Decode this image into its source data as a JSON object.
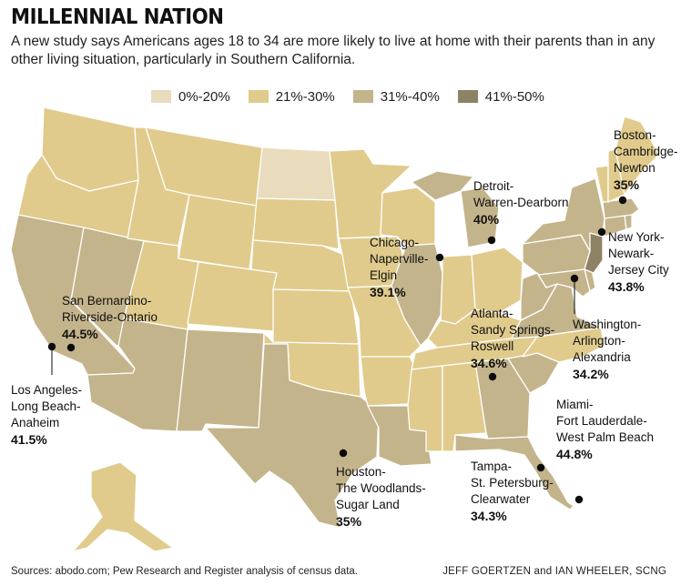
{
  "header": {
    "title": "MILLENNIAL NATION",
    "subtitle": "A new study says Americans ages 18 to 34 are more likely to live at home with their parents than in any other living situation, particularly in Southern California."
  },
  "legend": [
    {
      "label": "0%-20%",
      "color": "#e8dcbd"
    },
    {
      "label": "21%-30%",
      "color": "#e0cb8c"
    },
    {
      "label": "31%-40%",
      "color": "#c4b48b"
    },
    {
      "label": "41%-50%",
      "color": "#8e8264"
    }
  ],
  "states": {
    "0-20": [
      "ND"
    ],
    "21-30": [
      "WA",
      "OR",
      "ID",
      "MT",
      "WY",
      "SD",
      "NE",
      "KS",
      "OK",
      "MN",
      "IA",
      "MO",
      "AR",
      "WI",
      "IN",
      "OH",
      "KY",
      "TN",
      "NC",
      "MS",
      "AL",
      "VT",
      "NH",
      "ME",
      "UT",
      "CO",
      "AK"
    ],
    "31-40": [
      "CA",
      "NV",
      "AZ",
      "NM",
      "TX",
      "LA",
      "IL",
      "MI",
      "GA",
      "SC",
      "FL",
      "VA",
      "WV",
      "PA",
      "NY",
      "MD",
      "DE",
      "CT",
      "RI",
      "MA"
    ],
    "41-50": [
      "NJ"
    ]
  },
  "cities": [
    {
      "lines": [
        "San Bernardino-",
        "Riverside-Ontario"
      ],
      "pct": "44.5%"
    },
    {
      "lines": [
        "Los Angeles-",
        "Long Beach-",
        "Anaheim"
      ],
      "pct": "41.5%"
    },
    {
      "lines": [
        "Houston-",
        "The Woodlands-",
        "Sugar Land"
      ],
      "pct": "35%"
    },
    {
      "lines": [
        "Chicago-",
        "Naperville-",
        "Elgin"
      ],
      "pct": "39.1%"
    },
    {
      "lines": [
        "Detroit-",
        "Warren-Dearborn"
      ],
      "pct": "40%"
    },
    {
      "lines": [
        "Boston-",
        "Cambridge-",
        "Newton"
      ],
      "pct": "35%"
    },
    {
      "lines": [
        "New York-",
        "Newark-",
        "Jersey City"
      ],
      "pct": "43.8%"
    },
    {
      "lines": [
        "Washington-",
        "Arlington-Alexandria"
      ],
      "pct": "34.2%"
    },
    {
      "lines": [
        "Atlanta-",
        "Sandy Springs-",
        "Roswell"
      ],
      "pct": "34.6%"
    },
    {
      "lines": [
        "Miami-",
        "Fort Lauderdale-",
        "West Palm Beach"
      ],
      "pct": "44.8%"
    },
    {
      "lines": [
        "Tampa-",
        "St. Petersburg-",
        "Clearwater"
      ],
      "pct": "34.3%"
    }
  ],
  "footer": {
    "source": "Sources: abodo.com; Pew Research and Register analysis of census data.",
    "credit": "JEFF GOERTZEN and IAN WHEELER, SCNG"
  }
}
